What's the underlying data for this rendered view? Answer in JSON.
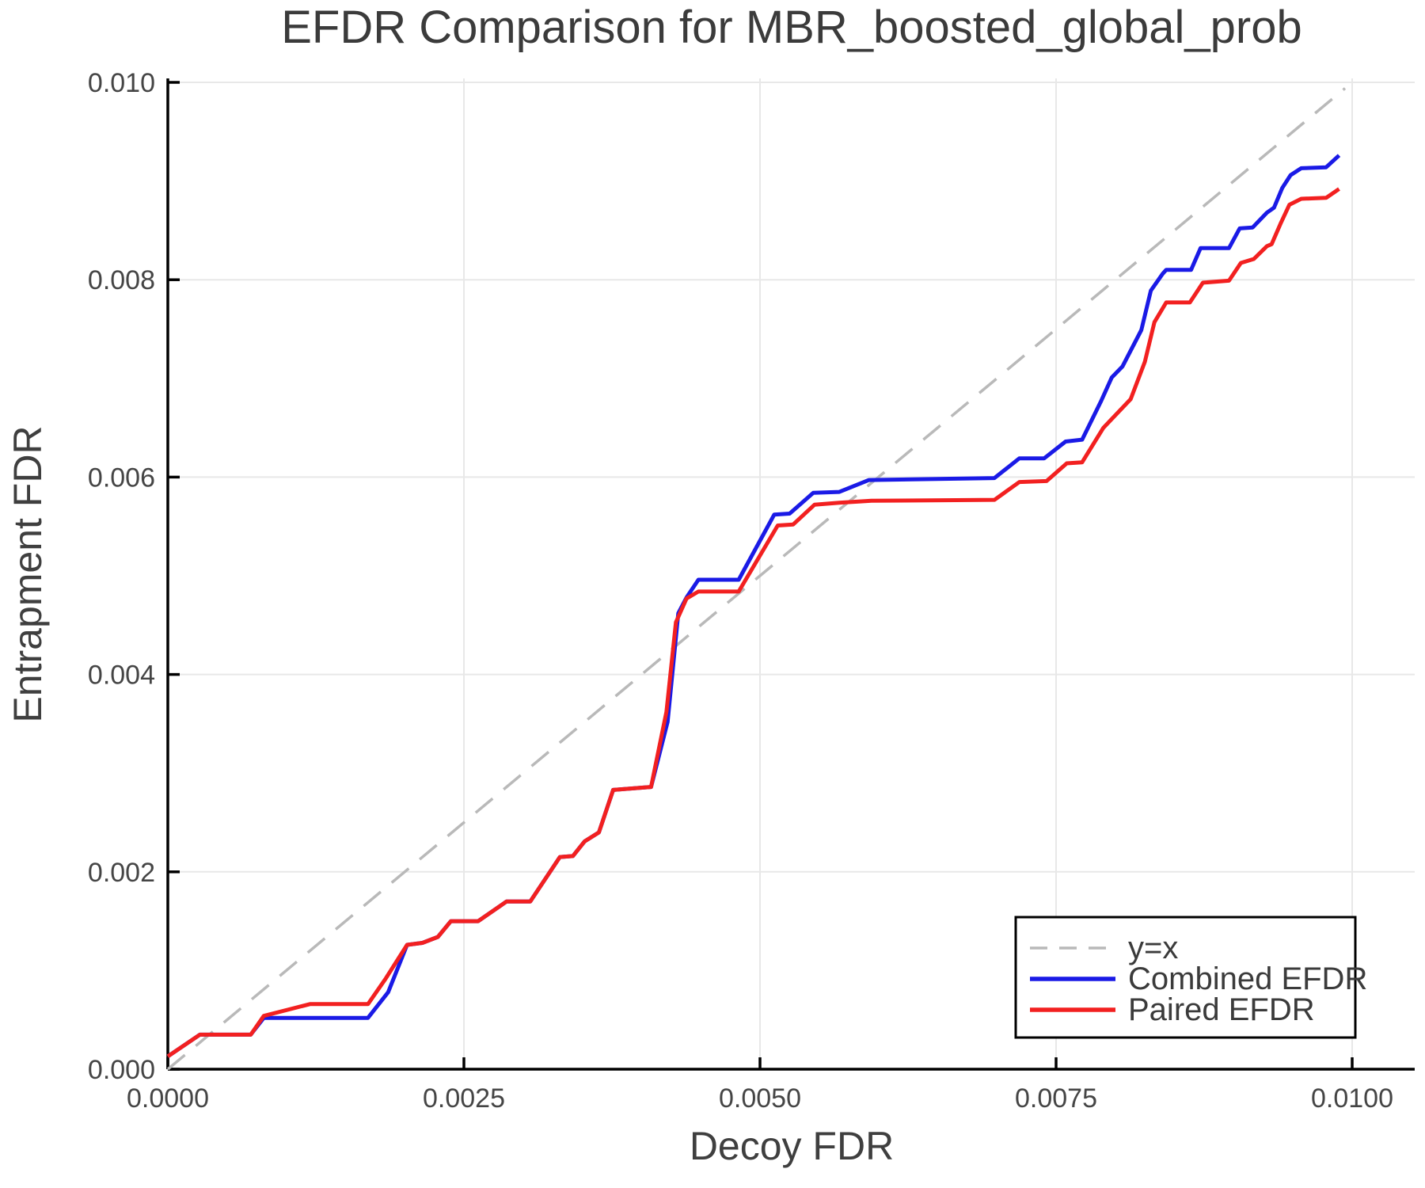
{
  "chart_data": {
    "type": "line",
    "title": "EFDR Comparison for MBR_boosted_global_prob",
    "xlabel": "Decoy FDR",
    "ylabel": "Entrapment FDR",
    "xlim": [
      0,
      0.01053
    ],
    "ylim": [
      0,
      0.01004
    ],
    "grid": true,
    "legend_position": "lower right",
    "x_ticks": {
      "values": [
        0,
        0.0025,
        0.005,
        0.0075,
        0.01
      ],
      "labels": [
        "0.0000",
        "0.0025",
        "0.0050",
        "0.0075",
        "0.0100"
      ]
    },
    "y_ticks": {
      "values": [
        0,
        0.002,
        0.004,
        0.006,
        0.008,
        0.01
      ],
      "labels": [
        "0.000",
        "0.002",
        "0.004",
        "0.006",
        "0.008",
        "0.010"
      ]
    },
    "colors": {
      "combined_efdr": "#1a1ae6",
      "paired_efdr": "#f22020",
      "identity_line": "#b9b9b9",
      "gridline": "#e8e8e8",
      "spine": "#000000",
      "text": "#3b3b3b"
    },
    "series": [
      {
        "name": "y=x",
        "style": "dashed",
        "color": "#b9b9b9",
        "width": 3.5,
        "points": [
          [
            0,
            0
          ],
          [
            0.00994,
            0.00994
          ]
        ]
      },
      {
        "name": "Combined EFDR",
        "style": "solid",
        "color": "#1a1ae6",
        "width": 5,
        "points": [
          [
            0.0,
            0.00013
          ],
          [
            0.00027,
            0.00035
          ],
          [
            0.0007,
            0.00035
          ],
          [
            0.00081,
            0.00052
          ],
          [
            0.00169,
            0.00052
          ],
          [
            0.00186,
            0.00078
          ],
          [
            0.00202,
            0.00126
          ],
          [
            0.00215,
            0.00128
          ],
          [
            0.00228,
            0.00134
          ],
          [
            0.00239,
            0.0015
          ],
          [
            0.00262,
            0.0015
          ],
          [
            0.00286,
            0.0017
          ],
          [
            0.00306,
            0.0017
          ],
          [
            0.00331,
            0.00215
          ],
          [
            0.00342,
            0.00216
          ],
          [
            0.00352,
            0.00231
          ],
          [
            0.00364,
            0.0024
          ],
          [
            0.00376,
            0.00283
          ],
          [
            0.00408,
            0.00286
          ],
          [
            0.00422,
            0.00352
          ],
          [
            0.00431,
            0.00462
          ],
          [
            0.00438,
            0.00478
          ],
          [
            0.00448,
            0.00496
          ],
          [
            0.00482,
            0.00496
          ],
          [
            0.00512,
            0.00562
          ],
          [
            0.00525,
            0.00563
          ],
          [
            0.00545,
            0.00584
          ],
          [
            0.00567,
            0.00585
          ],
          [
            0.00592,
            0.00597
          ],
          [
            0.00698,
            0.00599
          ],
          [
            0.00719,
            0.00619
          ],
          [
            0.0074,
            0.00619
          ],
          [
            0.00758,
            0.00636
          ],
          [
            0.00772,
            0.00638
          ],
          [
            0.00788,
            0.00677
          ],
          [
            0.00797,
            0.00701
          ],
          [
            0.00806,
            0.00712
          ],
          [
            0.00822,
            0.00749
          ],
          [
            0.0083,
            0.00789
          ],
          [
            0.0084,
            0.00806
          ],
          [
            0.00843,
            0.0081
          ],
          [
            0.00864,
            0.0081
          ],
          [
            0.00872,
            0.00832
          ],
          [
            0.00896,
            0.00832
          ],
          [
            0.00905,
            0.00852
          ],
          [
            0.00916,
            0.00853
          ],
          [
            0.00928,
            0.00868
          ],
          [
            0.00934,
            0.00873
          ],
          [
            0.00941,
            0.00893
          ],
          [
            0.00948,
            0.00906
          ],
          [
            0.00957,
            0.00913
          ],
          [
            0.00978,
            0.00914
          ],
          [
            0.00989,
            0.00926
          ]
        ]
      },
      {
        "name": "Paired EFDR",
        "style": "solid",
        "color": "#f22020",
        "width": 5,
        "points": [
          [
            0.0,
            0.00013
          ],
          [
            0.00027,
            0.00035
          ],
          [
            0.0007,
            0.00035
          ],
          [
            0.00081,
            0.00054
          ],
          [
            0.0012,
            0.00066
          ],
          [
            0.00169,
            0.00066
          ],
          [
            0.00184,
            0.00092
          ],
          [
            0.00202,
            0.00126
          ],
          [
            0.00215,
            0.00128
          ],
          [
            0.00228,
            0.00134
          ],
          [
            0.00239,
            0.0015
          ],
          [
            0.00262,
            0.0015
          ],
          [
            0.00286,
            0.0017
          ],
          [
            0.00306,
            0.0017
          ],
          [
            0.00331,
            0.00215
          ],
          [
            0.00342,
            0.00216
          ],
          [
            0.00352,
            0.00231
          ],
          [
            0.00364,
            0.0024
          ],
          [
            0.00376,
            0.00283
          ],
          [
            0.00408,
            0.00286
          ],
          [
            0.00421,
            0.00362
          ],
          [
            0.00429,
            0.00453
          ],
          [
            0.00438,
            0.00477
          ],
          [
            0.00448,
            0.00484
          ],
          [
            0.00482,
            0.00484
          ],
          [
            0.00515,
            0.00551
          ],
          [
            0.00528,
            0.00552
          ],
          [
            0.00546,
            0.00572
          ],
          [
            0.00567,
            0.00574
          ],
          [
            0.00594,
            0.00576
          ],
          [
            0.00698,
            0.00577
          ],
          [
            0.00719,
            0.00595
          ],
          [
            0.00742,
            0.00596
          ],
          [
            0.00759,
            0.00614
          ],
          [
            0.00772,
            0.00615
          ],
          [
            0.0079,
            0.0065
          ],
          [
            0.00813,
            0.00679
          ],
          [
            0.00825,
            0.00717
          ],
          [
            0.00833,
            0.00757
          ],
          [
            0.00843,
            0.00777
          ],
          [
            0.00863,
            0.00777
          ],
          [
            0.00874,
            0.00797
          ],
          [
            0.00896,
            0.00799
          ],
          [
            0.00906,
            0.00817
          ],
          [
            0.00917,
            0.00821
          ],
          [
            0.00928,
            0.00834
          ],
          [
            0.00932,
            0.00836
          ],
          [
            0.0094,
            0.00858
          ],
          [
            0.00947,
            0.00876
          ],
          [
            0.00957,
            0.00882
          ],
          [
            0.00978,
            0.00883
          ],
          [
            0.00989,
            0.00892
          ]
        ]
      }
    ]
  }
}
